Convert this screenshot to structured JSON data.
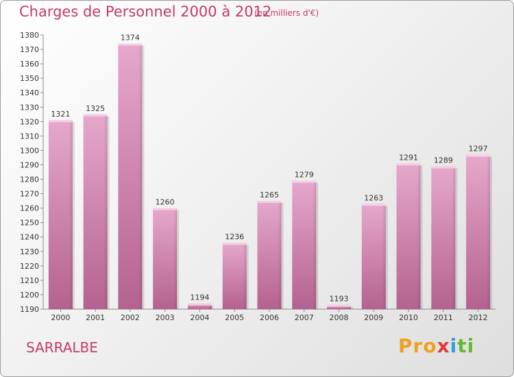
{
  "header": {
    "title": "Charges de Personnel 2000 à 2012",
    "unit": "(en milliers d'€)"
  },
  "footer": {
    "town": "SARRALBE",
    "logo_parts": [
      "Pro",
      "x",
      "i",
      "ti"
    ]
  },
  "colors": {
    "bar": "#d07aa8",
    "accent": "#c23a6b"
  },
  "chart_data": {
    "type": "bar",
    "title": "Charges de Personnel 2000 à 2012",
    "subtitle": "(en milliers d'€)",
    "categories": [
      "2000",
      "2001",
      "2002",
      "2003",
      "2004",
      "2005",
      "2006",
      "2007",
      "2008",
      "2009",
      "2010",
      "2011",
      "2012"
    ],
    "values": [
      1321,
      1325,
      1374,
      1260,
      1194,
      1236,
      1265,
      1279,
      1193,
      1263,
      1291,
      1289,
      1297
    ],
    "ylim": [
      1190,
      1380
    ],
    "ytick_step": 10,
    "grid": false
  }
}
